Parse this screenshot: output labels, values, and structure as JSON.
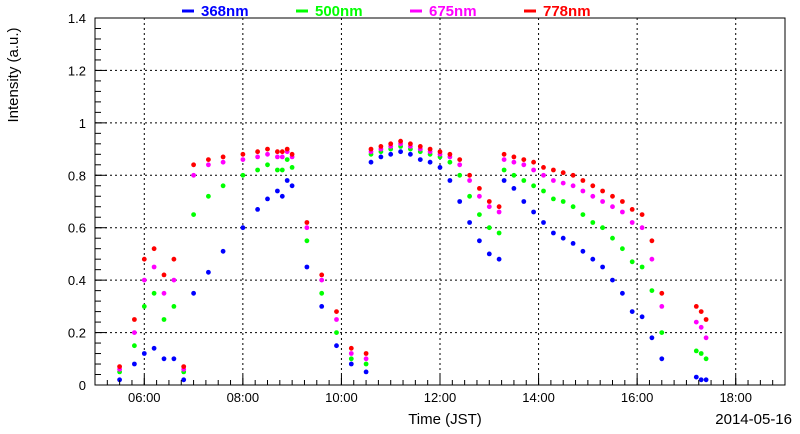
{
  "chart_data": {
    "type": "scatter",
    "xlabel": "Time (JST)",
    "ylabel": "Intensity (a.u.)",
    "date_label": "2014-05-16",
    "xlim": [
      5.0,
      19.0
    ],
    "ylim": [
      0,
      1.4
    ],
    "x_ticks": [
      {
        "value": 6,
        "label": "06:00"
      },
      {
        "value": 8,
        "label": "08:00"
      },
      {
        "value": 10,
        "label": "10:00"
      },
      {
        "value": 12,
        "label": "12:00"
      },
      {
        "value": 14,
        "label": "14:00"
      },
      {
        "value": 16,
        "label": "16:00"
      },
      {
        "value": 18,
        "label": "18:00"
      }
    ],
    "y_ticks": [
      {
        "value": 0,
        "label": "0"
      },
      {
        "value": 0.2,
        "label": "0.2"
      },
      {
        "value": 0.4,
        "label": "0.4"
      },
      {
        "value": 0.6,
        "label": "0.6"
      },
      {
        "value": 0.8,
        "label": "0.8"
      },
      {
        "value": 1.0,
        "label": "1"
      },
      {
        "value": 1.2,
        "label": "1.2"
      },
      {
        "value": 1.4,
        "label": "1.4"
      }
    ],
    "grid": true,
    "legend_position": "top",
    "series": [
      {
        "name": "368nm",
        "color": "#0000ff",
        "x": [
          5.5,
          5.8,
          6.0,
          6.2,
          6.4,
          6.6,
          6.8,
          7.0,
          7.3,
          7.6,
          8.0,
          8.3,
          8.5,
          8.7,
          8.8,
          8.9,
          9.0,
          9.3,
          9.6,
          9.9,
          10.2,
          10.5,
          10.6,
          10.8,
          11.0,
          11.2,
          11.4,
          11.6,
          11.8,
          12.0,
          12.2,
          12.4,
          12.6,
          12.8,
          13.0,
          13.2,
          13.3,
          13.5,
          13.7,
          13.9,
          14.1,
          14.3,
          14.5,
          14.7,
          14.9,
          15.1,
          15.3,
          15.5,
          15.7,
          15.9,
          16.1,
          16.3,
          16.5,
          17.2,
          17.3,
          17.4
        ],
        "y": [
          0.02,
          0.08,
          0.12,
          0.14,
          0.1,
          0.1,
          0.02,
          0.35,
          0.43,
          0.51,
          0.6,
          0.67,
          0.71,
          0.74,
          0.72,
          0.78,
          0.76,
          0.45,
          0.3,
          0.15,
          0.08,
          0.05,
          0.85,
          0.87,
          0.88,
          0.89,
          0.88,
          0.86,
          0.85,
          0.83,
          0.78,
          0.7,
          0.62,
          0.55,
          0.5,
          0.48,
          0.78,
          0.75,
          0.7,
          0.66,
          0.62,
          0.58,
          0.56,
          0.54,
          0.51,
          0.48,
          0.45,
          0.4,
          0.35,
          0.28,
          0.26,
          0.18,
          0.1,
          0.03,
          0.02,
          0.02
        ]
      },
      {
        "name": "500nm",
        "color": "#00ff00",
        "x": [
          5.5,
          5.8,
          6.0,
          6.2,
          6.4,
          6.6,
          6.8,
          7.0,
          7.3,
          7.6,
          8.0,
          8.3,
          8.5,
          8.7,
          8.8,
          8.9,
          9.0,
          9.3,
          9.6,
          9.9,
          10.2,
          10.5,
          10.6,
          10.8,
          11.0,
          11.2,
          11.4,
          11.6,
          11.8,
          12.0,
          12.2,
          12.4,
          12.6,
          12.8,
          13.0,
          13.2,
          13.3,
          13.5,
          13.7,
          13.9,
          14.1,
          14.3,
          14.5,
          14.7,
          14.9,
          15.1,
          15.3,
          15.5,
          15.7,
          15.9,
          16.1,
          16.3,
          16.5,
          17.2,
          17.3,
          17.4
        ],
        "y": [
          0.05,
          0.15,
          0.3,
          0.35,
          0.25,
          0.3,
          0.05,
          0.65,
          0.72,
          0.76,
          0.8,
          0.82,
          0.84,
          0.82,
          0.82,
          0.86,
          0.83,
          0.55,
          0.35,
          0.2,
          0.1,
          0.08,
          0.88,
          0.89,
          0.9,
          0.91,
          0.9,
          0.89,
          0.88,
          0.87,
          0.85,
          0.8,
          0.72,
          0.65,
          0.6,
          0.58,
          0.82,
          0.8,
          0.78,
          0.76,
          0.74,
          0.71,
          0.7,
          0.68,
          0.65,
          0.62,
          0.6,
          0.56,
          0.52,
          0.47,
          0.45,
          0.36,
          0.2,
          0.13,
          0.12,
          0.1
        ]
      },
      {
        "name": "675nm",
        "color": "#ff00ff",
        "x": [
          5.5,
          5.8,
          6.0,
          6.2,
          6.4,
          6.6,
          6.8,
          7.0,
          7.3,
          7.6,
          8.0,
          8.3,
          8.5,
          8.7,
          8.8,
          8.9,
          9.0,
          9.3,
          9.6,
          9.9,
          10.2,
          10.5,
          10.6,
          10.8,
          11.0,
          11.2,
          11.4,
          11.6,
          11.8,
          12.0,
          12.2,
          12.4,
          12.6,
          12.8,
          13.0,
          13.2,
          13.3,
          13.5,
          13.7,
          13.9,
          14.1,
          14.3,
          14.5,
          14.7,
          14.9,
          15.1,
          15.3,
          15.5,
          15.7,
          15.9,
          16.1,
          16.3,
          16.5,
          17.2,
          17.3,
          17.4
        ],
        "y": [
          0.06,
          0.2,
          0.4,
          0.45,
          0.35,
          0.4,
          0.06,
          0.8,
          0.84,
          0.85,
          0.86,
          0.87,
          0.88,
          0.87,
          0.87,
          0.89,
          0.87,
          0.6,
          0.4,
          0.25,
          0.12,
          0.1,
          0.89,
          0.9,
          0.91,
          0.92,
          0.91,
          0.9,
          0.89,
          0.88,
          0.87,
          0.84,
          0.78,
          0.72,
          0.68,
          0.66,
          0.86,
          0.85,
          0.84,
          0.82,
          0.8,
          0.78,
          0.77,
          0.76,
          0.74,
          0.72,
          0.7,
          0.68,
          0.66,
          0.62,
          0.6,
          0.48,
          0.3,
          0.24,
          0.22,
          0.18
        ]
      },
      {
        "name": "778nm",
        "color": "#ff0000",
        "x": [
          5.5,
          5.8,
          6.0,
          6.2,
          6.4,
          6.6,
          6.8,
          7.0,
          7.3,
          7.6,
          8.0,
          8.3,
          8.5,
          8.7,
          8.8,
          8.9,
          9.0,
          9.3,
          9.6,
          9.9,
          10.2,
          10.5,
          10.6,
          10.8,
          11.0,
          11.2,
          11.4,
          11.6,
          11.8,
          12.0,
          12.2,
          12.4,
          12.6,
          12.8,
          13.0,
          13.2,
          13.3,
          13.5,
          13.7,
          13.9,
          14.1,
          14.3,
          14.5,
          14.7,
          14.9,
          15.1,
          15.3,
          15.5,
          15.7,
          15.9,
          16.1,
          16.3,
          16.5,
          17.2,
          17.3,
          17.4
        ],
        "y": [
          0.07,
          0.25,
          0.48,
          0.52,
          0.42,
          0.48,
          0.07,
          0.84,
          0.86,
          0.87,
          0.88,
          0.89,
          0.9,
          0.89,
          0.89,
          0.9,
          0.88,
          0.62,
          0.42,
          0.28,
          0.14,
          0.12,
          0.9,
          0.91,
          0.92,
          0.93,
          0.92,
          0.91,
          0.9,
          0.89,
          0.88,
          0.86,
          0.8,
          0.75,
          0.7,
          0.68,
          0.88,
          0.87,
          0.86,
          0.85,
          0.83,
          0.82,
          0.81,
          0.8,
          0.78,
          0.76,
          0.74,
          0.72,
          0.7,
          0.67,
          0.65,
          0.55,
          0.35,
          0.3,
          0.28,
          0.25
        ]
      }
    ]
  }
}
